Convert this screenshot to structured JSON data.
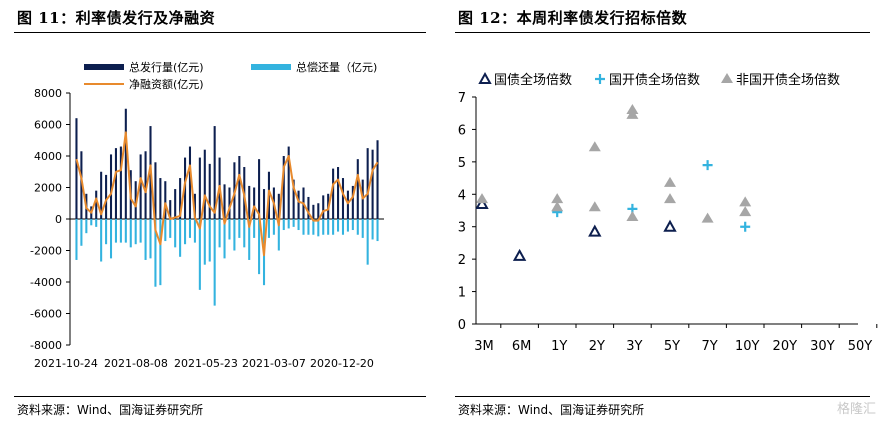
{
  "left_panel": {
    "title": "图 11：利率债发行及净融资",
    "source": "资料来源：Wind、国海证券研究所"
  },
  "right_panel": {
    "title": "图 12：本周利率债发行招标倍数",
    "source": "资料来源：Wind、国海证券研究所"
  },
  "watermark": "格隆汇",
  "chart_data": [
    {
      "type": "bar",
      "title": "",
      "legend": [
        "总发行量(亿元)",
        "总偿还量（亿元)",
        "净融资额(亿元)"
      ],
      "legend_placement": "top",
      "ylim": [
        -8000,
        8000
      ],
      "yticks": [
        -8000,
        -6000,
        -4000,
        -2000,
        0,
        2000,
        4000,
        6000,
        8000
      ],
      "xtick_labels": [
        "2021-10-24",
        "2021-08-08",
        "2021-05-23",
        "2021-03-07",
        "2020-12-20"
      ],
      "series": [
        {
          "name": "总发行量(亿元)",
          "color": "#0d1f4f",
          "values": [
            6400,
            4300,
            1600,
            800,
            1800,
            3000,
            2800,
            4100,
            4500,
            4600,
            7000,
            3100,
            2400,
            4100,
            4300,
            5900,
            3600,
            2600,
            2400,
            1200,
            1900,
            2600,
            3900,
            4600,
            1600,
            3900,
            4400,
            3500,
            5900,
            3900,
            2200,
            2000,
            3600,
            4000,
            3300,
            2100,
            2000,
            3800,
            1900,
            3000,
            2000,
            1600,
            4000,
            4600,
            2500,
            1800,
            2000,
            1400,
            900,
            1000,
            1500,
            1600,
            3200,
            3300,
            2600,
            1800,
            2100,
            3800,
            2500,
            4500,
            4400,
            5000
          ]
        },
        {
          "name": "总偿还量（亿元)",
          "color": "#33b3df",
          "values": [
            -2600,
            -1700,
            -900,
            -400,
            -500,
            -2700,
            -1600,
            -2500,
            -1500,
            -1500,
            -1500,
            -1800,
            -1600,
            -1500,
            -2600,
            -2500,
            -4300,
            -4200,
            -1400,
            -1200,
            -1800,
            -2400,
            -1600,
            -1200,
            -1500,
            -4500,
            -2900,
            -2700,
            -5500,
            -1800,
            -2500,
            -1300,
            -2000,
            -1200,
            -1800,
            -2600,
            -1200,
            -3500,
            -4200,
            -1200,
            -1000,
            -2000,
            -700,
            -600,
            -500,
            -700,
            -1000,
            -1000,
            -1000,
            -1100,
            -1000,
            -1000,
            -1000,
            -800,
            -1000,
            -800,
            -700,
            -1000,
            -1200,
            -2900,
            -1300,
            -1400
          ]
        },
        {
          "name": "净融资额(亿元)",
          "color": "#e88a2d",
          "values": [
            3800,
            2600,
            700,
            400,
            1300,
            300,
            1200,
            1600,
            3000,
            3100,
            5500,
            1300,
            800,
            2600,
            1700,
            3400,
            -700,
            -1600,
            1000,
            0,
            100,
            200,
            2300,
            3400,
            100,
            -600,
            1500,
            800,
            400,
            2100,
            -300,
            700,
            1600,
            2800,
            1500,
            -500,
            800,
            300,
            -2300,
            1800,
            1000,
            -400,
            3300,
            4000,
            2000,
            1100,
            1000,
            400,
            -100,
            -100,
            500,
            600,
            2200,
            2500,
            1600,
            1000,
            1400,
            2800,
            1300,
            1600,
            3100,
            3600
          ]
        }
      ]
    },
    {
      "type": "scatter",
      "title": "",
      "legend": [
        "国债全场倍数",
        "国开债全场倍数",
        "非国开债全场倍数"
      ],
      "legend_placement": "top",
      "categories": [
        "3M",
        "6M",
        "1Y",
        "2Y",
        "3Y",
        "5Y",
        "7Y",
        "10Y",
        "20Y",
        "30Y",
        "50Y"
      ],
      "ylim": [
        0,
        7
      ],
      "yticks": [
        0,
        1,
        2,
        3,
        4,
        5,
        6,
        7
      ],
      "series": [
        {
          "name": "国债全场倍数",
          "marker": "triangle-outline",
          "color": "#0d1f4f",
          "points": [
            [
              "3M",
              3.7
            ],
            [
              "6M",
              2.1
            ],
            [
              "2Y",
              2.85
            ],
            [
              "5Y",
              3.0
            ]
          ]
        },
        {
          "name": "国开债全场倍数",
          "marker": "plus",
          "color": "#33b3df",
          "points": [
            [
              "1Y",
              3.45
            ],
            [
              "3Y",
              3.55
            ],
            [
              "7Y",
              4.9
            ],
            [
              "10Y",
              3.0
            ]
          ]
        },
        {
          "name": "非国开债全场倍数",
          "marker": "triangle-filled",
          "color": "#a6a6a6",
          "points": [
            [
              "3M",
              3.85
            ],
            [
              "1Y",
              3.85
            ],
            [
              "1Y",
              3.6
            ],
            [
              "2Y",
              5.45
            ],
            [
              "2Y",
              3.6
            ],
            [
              "3Y",
              6.6
            ],
            [
              "3Y",
              6.45
            ],
            [
              "3Y",
              3.3
            ],
            [
              "5Y",
              4.35
            ],
            [
              "5Y",
              3.85
            ],
            [
              "7Y",
              3.25
            ],
            [
              "10Y",
              3.75
            ],
            [
              "10Y",
              3.45
            ]
          ]
        }
      ]
    }
  ]
}
